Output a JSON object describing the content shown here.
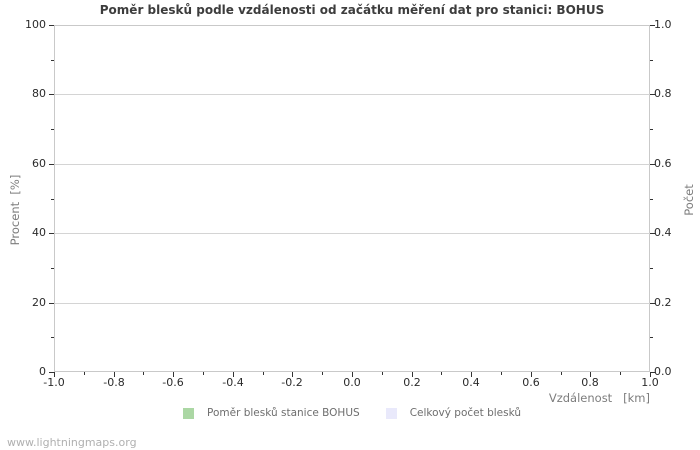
{
  "watermark": "www.lightningmaps.org",
  "colors": {
    "background": "#ffffff",
    "plot_border": "#c9c9c9",
    "gridline": "#d4d4d4",
    "tick": "#333333",
    "tick_label": "#2b2b2b",
    "title": "#3d3d3d",
    "axis_label": "#7d7d7d",
    "legend_label": "#6e6e6e",
    "watermark": "#b0b0b0"
  },
  "chart_data": {
    "type": "bar",
    "title": "Poměr blesků podle vzdálenosti od začátku měření dat pro stanici: BOHUS",
    "xlabel": "Vzdálenost   [km]",
    "ylabel_left": "Procent  [%]",
    "ylabel_right": "Počet",
    "xlim": [
      -1.0,
      1.0
    ],
    "ylim_left": [
      0,
      100
    ],
    "ylim_right": [
      0.0,
      1.0
    ],
    "x_tick_labels": [
      "-1.0",
      "-0.8",
      "-0.6",
      "-0.4",
      "-0.2",
      "0.0",
      "0.2",
      "0.4",
      "0.6",
      "0.8",
      "1.0"
    ],
    "y_left_tick_labels": [
      "0",
      "20",
      "40",
      "60",
      "80",
      "100"
    ],
    "y_right_tick_labels": [
      "0.0",
      "0.2",
      "0.4",
      "0.6",
      "0.8",
      "1.0"
    ],
    "grid": "horizontal-major-only",
    "legend_position": "bottom-center",
    "series": [
      {
        "name": "Poměr blesků stanice BOHUS",
        "color": "#abd7a4",
        "values": []
      },
      {
        "name": "Celkový počet blesků",
        "color": "#e9e9fb",
        "values": []
      }
    ]
  }
}
